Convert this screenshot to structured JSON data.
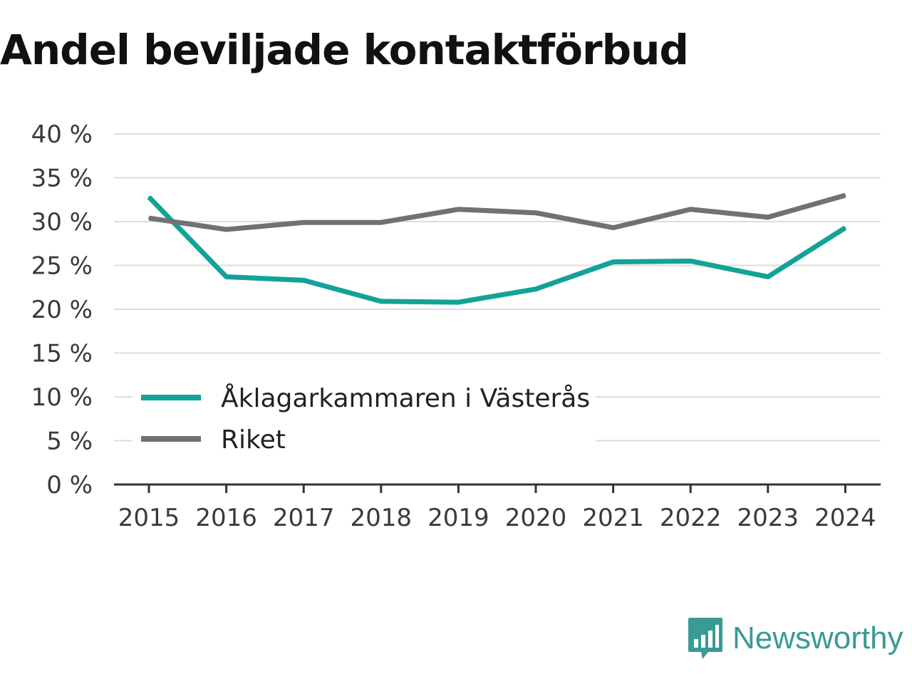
{
  "chart_data": {
    "type": "line",
    "title": "Andel beviljade kontaktförbud",
    "x": [
      "2015",
      "2016",
      "2017",
      "2018",
      "2019",
      "2020",
      "2021",
      "2022",
      "2023",
      "2024"
    ],
    "ylim": [
      0,
      40
    ],
    "yticks": [
      0,
      5,
      10,
      15,
      20,
      25,
      30,
      35,
      40
    ],
    "ytick_labels": [
      "0 %",
      "5 %",
      "10 %",
      "15 %",
      "20 %",
      "25 %",
      "30 %",
      "35 %",
      "40 %"
    ],
    "grid": true,
    "legend_position": "lower-left",
    "series": [
      {
        "name": "Åklagarkammaren i Västerås",
        "color": "#12a398",
        "values": [
          32.8,
          23.7,
          23.3,
          20.9,
          20.8,
          22.3,
          25.4,
          25.5,
          23.7,
          29.3
        ]
      },
      {
        "name": "Riket",
        "color": "#717076",
        "values": [
          30.4,
          29.1,
          29.9,
          29.9,
          31.4,
          31.0,
          29.3,
          31.4,
          30.5,
          33.0
        ]
      }
    ]
  },
  "brand": {
    "name": "Newsworthy",
    "color": "#3a9a94",
    "icon": "newsworthy-logo-icon"
  }
}
